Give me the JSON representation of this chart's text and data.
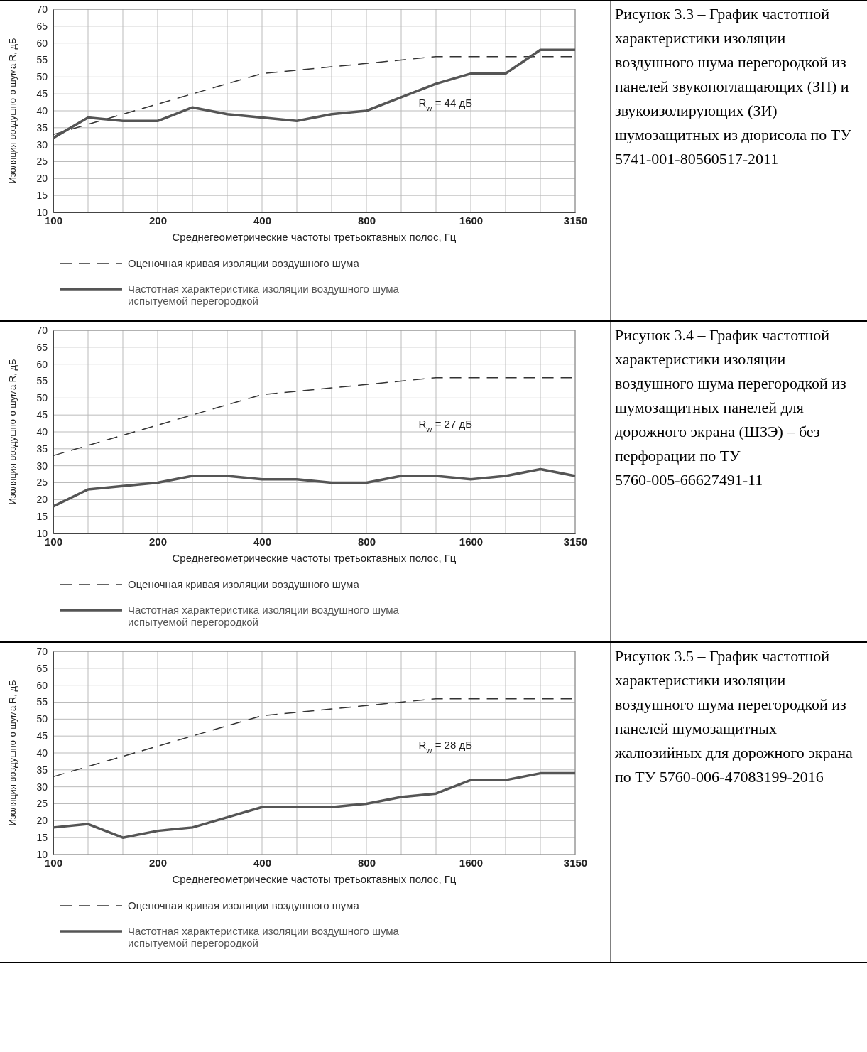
{
  "chart_data": [
    {
      "type": "line",
      "xlabel": "Среднегеометрические частоты третьоктавных полос,  Гц",
      "ylabel": "Изоляция воздушного шума R, дБ",
      "categories": [
        "100",
        null,
        null,
        "200",
        null,
        null,
        "400",
        null,
        null,
        "800",
        null,
        null,
        "1600",
        null,
        null,
        "3150"
      ],
      "ylim": [
        10,
        70
      ],
      "yticks": [
        10,
        15,
        20,
        25,
        30,
        35,
        40,
        45,
        50,
        55,
        60,
        65,
        70
      ],
      "grid": true,
      "legend": "bottom",
      "annotations": [
        "Рисунок 3.3 – График частотной характеристики изоляции воздушного шума перегородкой из панелей звукопоглащающих (ЗП) и звукоизолирующих (ЗИ) шумозащитных из дюрисола по ТУ 5741-001-80560517-2011",
        "R$_{w}$ = 44 дБ"
      ],
      "series": [
        {
          "name": "Оценочная кривая изоляции воздушного шума",
          "color": "#333333",
          "line_style": "dashed",
          "values": [
            33,
            36,
            39,
            42,
            45,
            48,
            51,
            52,
            53,
            54,
            55,
            56,
            56,
            56,
            56,
            56
          ]
        },
        {
          "name": "Частотная характеристика изоляции воздушного шума испытуемой перегородкой",
          "color": "#555555",
          "line_style": "solid",
          "values": [
            32,
            38,
            37,
            37,
            41,
            39,
            38,
            37,
            39,
            40,
            44,
            48,
            51,
            51,
            58,
            58
          ]
        }
      ]
    },
    {
      "type": "line",
      "xlabel": "Среднегеометрические частоты третьоктавных полос,  Гц",
      "ylabel": "Изоляция воздушного шума R, дБ",
      "categories": [
        "100",
        null,
        null,
        "200",
        null,
        null,
        "400",
        null,
        null,
        "800",
        null,
        null,
        "1600",
        null,
        null,
        "3150"
      ],
      "ylim": [
        10,
        70
      ],
      "yticks": [
        10,
        15,
        20,
        25,
        30,
        35,
        40,
        45,
        50,
        55,
        60,
        65,
        70
      ],
      "grid": true,
      "legend": "bottom",
      "annotations": [
        "Рисунок 3.4 – График частотной характеристики изоляции воздушного шума перегородкой из шумозащитных панелей для дорожного экрана (ШЗЭ) – без перфорации по ТУ 5760-005-66627491-11",
        "R$_{w}$ = 27 дБ"
      ],
      "series": [
        {
          "name": "Оценочная кривая изоляции воздушного шума",
          "color": "#333333",
          "line_style": "dashed",
          "values": [
            33,
            36,
            39,
            42,
            45,
            48,
            51,
            52,
            53,
            54,
            55,
            56,
            56,
            56,
            56,
            56
          ]
        },
        {
          "name": "Частотная характеристика изоляции воздушного шума испытуемой перегородкой",
          "color": "#555555",
          "line_style": "solid",
          "values": [
            18,
            23,
            24,
            25,
            27,
            27,
            26,
            26,
            25,
            25,
            27,
            27,
            26,
            27,
            29,
            27
          ]
        }
      ]
    },
    {
      "type": "line",
      "xlabel": "Среднегеометрические частоты третьоктавных полос,  Гц",
      "ylabel": "Изоляция воздушного шума R, дБ",
      "categories": [
        "100",
        null,
        null,
        "200",
        null,
        null,
        "400",
        null,
        null,
        "800",
        null,
        null,
        "1600",
        null,
        null,
        "3150"
      ],
      "ylim": [
        10,
        70
      ],
      "yticks": [
        10,
        15,
        20,
        25,
        30,
        35,
        40,
        45,
        50,
        55,
        60,
        65,
        70
      ],
      "grid": true,
      "legend": "bottom",
      "annotations": [
        "Рисунок 3.5 – График частотной характеристики изоляции воздушного шума перегородкой из панелей шумозащитных жалюзийных для дорожного экрана по ТУ 5760-006-47083199-2016",
        "R$_{w}$ = 28 дБ"
      ],
      "series": [
        {
          "name": "Оценочная кривая изоляции воздушного шума",
          "color": "#333333",
          "line_style": "dashed",
          "values": [
            33,
            36,
            39,
            42,
            45,
            48,
            51,
            52,
            53,
            54,
            55,
            56,
            56,
            56,
            56,
            56
          ]
        },
        {
          "name": "Частотная характеристика изоляции воздушного шума испытуемой перегородкой",
          "color": "#555555",
          "line_style": "solid",
          "values": [
            18,
            19,
            15,
            17,
            18,
            21,
            24,
            24,
            24,
            25,
            27,
            28,
            32,
            32,
            34,
            34
          ]
        }
      ]
    }
  ]
}
